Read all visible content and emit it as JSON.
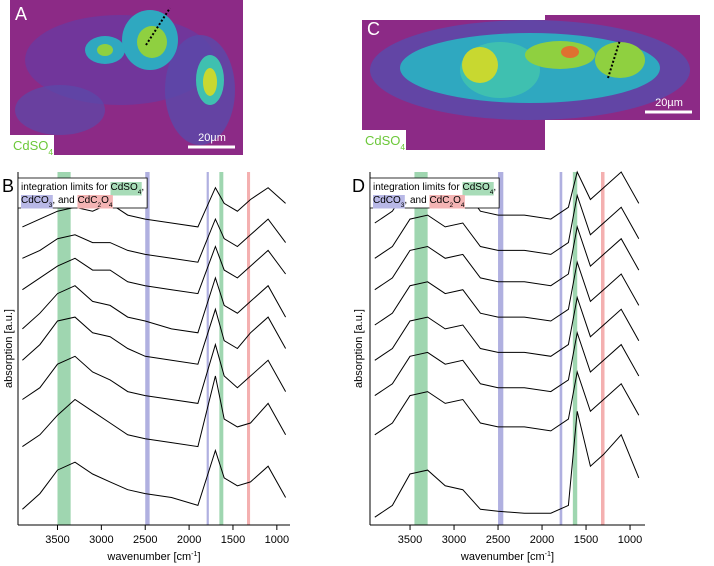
{
  "images": [
    {
      "label": "A",
      "scale": "20µm",
      "compound": [
        {
          "text": "CdSO"
        },
        {
          "text": "4",
          "sub": true
        }
      ]
    },
    {
      "label": "C",
      "scale": "20µm",
      "compound": [
        {
          "text": "CdSO"
        },
        {
          "text": "4",
          "sub": true
        }
      ]
    }
  ],
  "chart_data": [
    {
      "type": "line",
      "label": "B",
      "ylabel": "absorption [a.u.]",
      "xlabel": [
        {
          "text": "wavenumber [cm"
        },
        {
          "text": "-1",
          "sup": true
        },
        {
          "text": "]"
        }
      ],
      "legend": [
        [
          {
            "text": "integration limits for "
          },
          {
            "text": "CdSO",
            "bg": "#a8dcb8"
          },
          {
            "text": "4",
            "bg": "#a8dcb8",
            "sub": true
          },
          {
            "text": ","
          }
        ],
        [
          {
            "text": "CdCO",
            "bg": "#b8b8e6"
          },
          {
            "text": "3",
            "bg": "#b8b8e6",
            "sub": true
          },
          {
            "text": ", and "
          },
          {
            "text": "CdC",
            "bg": "#f4b4b4"
          },
          {
            "text": "2",
            "bg": "#f4b4b4",
            "sub": true
          },
          {
            "text": "O",
            "bg": "#f4b4b4"
          },
          {
            "text": "4",
            "bg": "#f4b4b4",
            "sub": true
          }
        ]
      ],
      "xlim": [
        3950,
        850
      ],
      "ylim": [
        0,
        9
      ],
      "xticks": [
        3500,
        3000,
        2500,
        2000,
        1500,
        1000
      ],
      "bands": [
        {
          "from": 3500,
          "to": 3350,
          "color": "#9fd6b0"
        },
        {
          "from": 2500,
          "to": 2450,
          "color": "#b0b0e0"
        },
        {
          "from": 1800,
          "to": 1775,
          "color": "#b0b0e0"
        },
        {
          "from": 1655,
          "to": 1610,
          "color": "#9fd6b0"
        },
        {
          "from": 1340,
          "to": 1305,
          "color": "#f4b0b0"
        }
      ],
      "x": [
        3900,
        3700,
        3500,
        3300,
        3100,
        2900,
        2700,
        2500,
        2200,
        1900,
        1700,
        1600,
        1450,
        1300,
        1100,
        900
      ],
      "series": [
        {
          "color": "#000",
          "values": [
            7.6,
            7.8,
            8.0,
            8.1,
            8.0,
            8.2,
            7.9,
            7.8,
            7.7,
            7.6,
            8.6,
            8.2,
            8.0,
            8.3,
            8.6,
            8.2
          ]
        },
        {
          "color": "#000",
          "values": [
            6.8,
            7.0,
            7.3,
            7.4,
            7.2,
            7.2,
            7.0,
            6.9,
            6.8,
            6.7,
            7.8,
            7.3,
            7.1,
            7.4,
            7.8,
            7.2
          ]
        },
        {
          "color": "#000",
          "values": [
            6.0,
            6.3,
            6.6,
            6.8,
            6.5,
            6.5,
            6.2,
            6.1,
            6.0,
            5.9,
            7.1,
            6.5,
            6.3,
            6.6,
            7.0,
            6.4
          ]
        },
        {
          "color": "#000",
          "values": [
            5.0,
            5.4,
            5.9,
            6.1,
            5.7,
            5.6,
            5.3,
            5.2,
            5.0,
            4.9,
            6.3,
            5.6,
            5.4,
            5.7,
            6.1,
            5.3
          ]
        },
        {
          "color": "#000",
          "values": [
            4.2,
            4.6,
            5.2,
            5.3,
            4.9,
            4.8,
            4.5,
            4.3,
            4.2,
            4.1,
            5.5,
            4.7,
            4.5,
            4.9,
            5.3,
            4.5
          ]
        },
        {
          "color": "#000",
          "values": [
            3.2,
            3.5,
            4.1,
            4.3,
            3.9,
            3.7,
            3.4,
            3.3,
            3.2,
            3.1,
            4.6,
            3.8,
            3.5,
            3.8,
            4.2,
            3.4
          ]
        },
        {
          "color": "#000",
          "values": [
            2.0,
            2.3,
            2.8,
            3.2,
            2.9,
            2.6,
            2.3,
            2.2,
            2.1,
            2.0,
            3.8,
            2.7,
            2.5,
            2.6,
            3.1,
            2.3
          ]
        },
        {
          "color": "#000",
          "values": [
            0.4,
            0.8,
            1.4,
            1.6,
            1.3,
            1.1,
            0.9,
            0.8,
            0.7,
            0.5,
            1.9,
            1.2,
            1.0,
            1.1,
            1.5,
            0.7
          ]
        }
      ]
    },
    {
      "type": "line",
      "label": "D",
      "ylabel": "absorption [a.u.]",
      "xlabel": [
        {
          "text": "wavenumber [cm"
        },
        {
          "text": "-1",
          "sup": true
        },
        {
          "text": "]"
        }
      ],
      "legend": [
        [
          {
            "text": "integration limits for "
          },
          {
            "text": "CdSO",
            "bg": "#a8dcb8"
          },
          {
            "text": "4",
            "bg": "#a8dcb8",
            "sub": true
          },
          {
            "text": ","
          }
        ],
        [
          {
            "text": "CdCO",
            "bg": "#b8b8e6"
          },
          {
            "text": "3",
            "bg": "#b8b8e6",
            "sub": true
          },
          {
            "text": ", and "
          },
          {
            "text": "CdC",
            "bg": "#f4b4b4"
          },
          {
            "text": "2",
            "bg": "#f4b4b4",
            "sub": true
          },
          {
            "text": "O",
            "bg": "#f4b4b4"
          },
          {
            "text": "4",
            "bg": "#f4b4b4",
            "sub": true
          }
        ]
      ],
      "xlim": [
        3955,
        830
      ],
      "ylim": [
        0,
        9
      ],
      "xticks": [
        3500,
        3000,
        2500,
        2000,
        1500,
        1000
      ],
      "bands": [
        {
          "from": 3450,
          "to": 3300,
          "color": "#9fd6b0"
        },
        {
          "from": 2500,
          "to": 2440,
          "color": "#b0b0e0"
        },
        {
          "from": 1800,
          "to": 1770,
          "color": "#b0b0e0"
        },
        {
          "from": 1650,
          "to": 1600,
          "color": "#9fd6b0"
        },
        {
          "from": 1330,
          "to": 1290,
          "color": "#f4b0b0"
        }
      ],
      "x": [
        3900,
        3700,
        3500,
        3300,
        3100,
        2900,
        2700,
        2500,
        2200,
        1900,
        1700,
        1600,
        1450,
        1300,
        1100,
        900
      ],
      "series": [
        {
          "color": "#000",
          "values": [
            7.7,
            8.0,
            8.7,
            8.8,
            8.5,
            8.6,
            8.0,
            7.9,
            7.9,
            7.8,
            8.1,
            9.0,
            8.3,
            8.6,
            9.0,
            8.2
          ]
        },
        {
          "color": "#000",
          "values": [
            6.8,
            7.1,
            7.8,
            7.9,
            7.6,
            7.7,
            7.1,
            7.0,
            7.0,
            6.9,
            7.2,
            8.4,
            7.4,
            7.7,
            8.1,
            7.3
          ]
        },
        {
          "color": "#000",
          "values": [
            6.0,
            6.3,
            7.0,
            7.1,
            6.8,
            6.9,
            6.3,
            6.2,
            6.2,
            6.1,
            6.4,
            7.6,
            6.6,
            6.9,
            7.3,
            6.5
          ]
        },
        {
          "color": "#000",
          "values": [
            5.1,
            5.4,
            6.1,
            6.2,
            5.9,
            6.0,
            5.4,
            5.3,
            5.3,
            5.2,
            5.5,
            6.7,
            5.7,
            6.0,
            6.4,
            5.6
          ]
        },
        {
          "color": "#000",
          "values": [
            4.2,
            4.5,
            5.2,
            5.3,
            5.0,
            5.1,
            4.5,
            4.4,
            4.4,
            4.3,
            4.6,
            5.8,
            4.8,
            5.1,
            5.5,
            4.7
          ]
        },
        {
          "color": "#000",
          "values": [
            3.3,
            3.6,
            4.3,
            4.4,
            4.1,
            4.2,
            3.6,
            3.5,
            3.5,
            3.4,
            3.7,
            4.9,
            3.9,
            4.2,
            4.6,
            3.8
          ]
        },
        {
          "color": "#000",
          "values": [
            2.3,
            2.6,
            3.3,
            3.4,
            3.1,
            3.2,
            2.6,
            2.5,
            2.5,
            2.4,
            2.7,
            3.9,
            2.9,
            3.2,
            3.6,
            2.8
          ]
        },
        {
          "color": "#000",
          "values": [
            0.2,
            0.5,
            1.3,
            1.4,
            1.0,
            0.9,
            0.4,
            0.35,
            0.3,
            0.3,
            0.5,
            2.9,
            1.5,
            1.8,
            2.3,
            1.2
          ]
        }
      ]
    }
  ]
}
